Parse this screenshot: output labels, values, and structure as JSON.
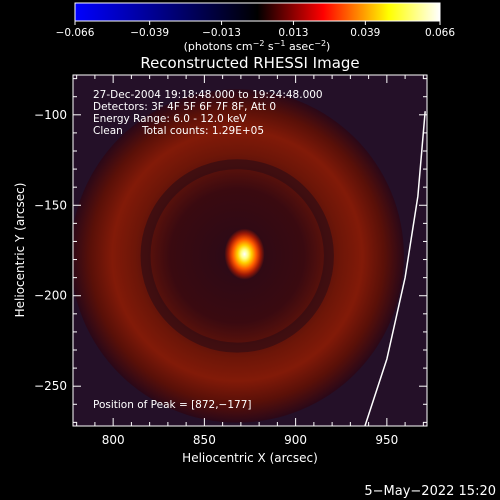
{
  "chart_data": {
    "type": "heatmap",
    "title": "Reconstructed RHESSI Image",
    "xlabel": "Heliocentric X (arcsec)",
    "ylabel": "Heliocentric Y (arcsec)",
    "xlim": [
      778,
      972
    ],
    "ylim": [
      -272,
      -78
    ],
    "xticks": [
      800,
      850,
      900,
      950
    ],
    "yticks": [
      -100,
      -150,
      -200,
      -250
    ],
    "xtick_labels": [
      "800",
      "850",
      "900",
      "950"
    ],
    "ytick_labels": [
      "−100",
      "−150",
      "−200",
      "−250"
    ],
    "colorbar": {
      "min": -0.066,
      "max": 0.066,
      "ticks": [
        -0.066,
        -0.039,
        -0.013,
        0.013,
        0.039,
        0.066
      ],
      "tick_labels": [
        "−0.066",
        "−0.039",
        "−0.013",
        "0.013",
        "0.039",
        "0.066"
      ],
      "units_base": "(photons cm",
      "units_exp1": "−2",
      "units_mid1": " s",
      "units_exp2": "−1",
      "units_mid2": " asec",
      "units_exp3": "−2",
      "units_end": ")",
      "colors": [
        "#0000ff",
        "#000000",
        "#ff0000",
        "#ffff00",
        "#ffffff"
      ]
    },
    "peak": {
      "x": 872,
      "y": -177,
      "value": 0.066
    },
    "ring": {
      "center_x": 868,
      "center_y": -178,
      "radius": 63,
      "value": 0.01
    },
    "limb": [
      [
        938,
        -272
      ],
      [
        950,
        -235
      ],
      [
        960,
        -190
      ],
      [
        967,
        -145
      ],
      [
        971,
        -98
      ]
    ],
    "annotations": {
      "time_range": "27-Dec-2004 19:18:48.000 to 19:24:48.000",
      "detectors": "Detectors: 3F 4F 5F 6F 7F 8F, Att 0",
      "energy": "Energy Range: 6.0 - 12.0 keV",
      "method": "Clean",
      "counts": "Total counts: 1.29E+05",
      "peak_position": "Position of Peak = [872,−177]"
    }
  },
  "footer": {
    "date": "5−May−2022 15:20"
  }
}
